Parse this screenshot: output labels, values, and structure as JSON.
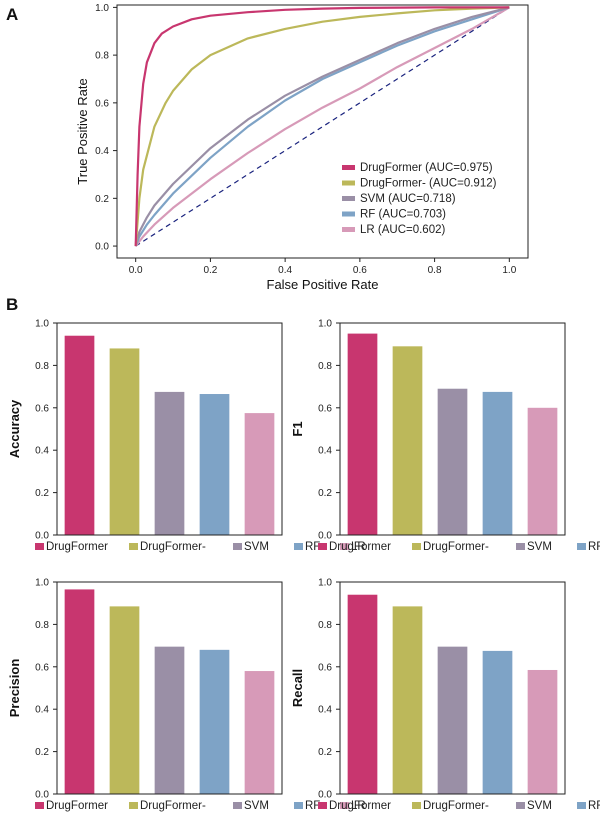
{
  "panel_labels": {
    "a": "A",
    "b": "B"
  },
  "colors": {
    "DrugFormer": "#c8366f",
    "DrugFormer-": "#bcb85a",
    "SVM": "#9a8fa6",
    "RF": "#7ea3c6",
    "LR": "#d79ab8",
    "diagonal": "#1a237e"
  },
  "methods": [
    "DrugFormer",
    "DrugFormer-",
    "SVM",
    "RF",
    "LR"
  ],
  "chart_data": [
    {
      "type": "line",
      "id": "roc",
      "title": "",
      "xlabel": "False Positive Rate",
      "ylabel": "True Positive Rate",
      "xlim": [
        -0.05,
        1.05
      ],
      "ylim": [
        -0.05,
        1.01
      ],
      "xticks": [
        "0.0",
        "0.2",
        "0.4",
        "0.6",
        "0.8",
        "1.0"
      ],
      "yticks": [
        "0.0",
        "0.2",
        "0.4",
        "0.6",
        "0.8",
        "1.0"
      ],
      "legend_position": "bottom-right",
      "diagonal": {
        "x": [
          0,
          1
        ],
        "y": [
          0,
          1
        ],
        "style": "dashed"
      },
      "series": [
        {
          "name": "DrugFormer",
          "legend": "DrugFormer (AUC=0.975)",
          "x": [
            0,
            0.005,
            0.01,
            0.02,
            0.03,
            0.05,
            0.07,
            0.1,
            0.15,
            0.2,
            0.3,
            0.4,
            0.5,
            0.6,
            0.8,
            1.0
          ],
          "y": [
            0,
            0.3,
            0.5,
            0.68,
            0.77,
            0.85,
            0.89,
            0.92,
            0.95,
            0.965,
            0.98,
            0.99,
            0.995,
            0.998,
            1.0,
            1.0
          ]
        },
        {
          "name": "DrugFormer-",
          "legend": "DrugFormer- (AUC=0.912)",
          "x": [
            0,
            0.01,
            0.02,
            0.05,
            0.08,
            0.1,
            0.15,
            0.2,
            0.3,
            0.4,
            0.5,
            0.6,
            0.7,
            0.8,
            0.9,
            1.0
          ],
          "y": [
            0,
            0.2,
            0.32,
            0.5,
            0.6,
            0.65,
            0.74,
            0.8,
            0.87,
            0.91,
            0.94,
            0.96,
            0.975,
            0.988,
            0.995,
            1.0
          ]
        },
        {
          "name": "SVM",
          "legend": "SVM (AUC=0.718)",
          "x": [
            0,
            0.01,
            0.03,
            0.05,
            0.1,
            0.2,
            0.3,
            0.4,
            0.5,
            0.6,
            0.7,
            0.8,
            0.9,
            1.0
          ],
          "y": [
            0,
            0.06,
            0.12,
            0.17,
            0.26,
            0.41,
            0.53,
            0.63,
            0.71,
            0.78,
            0.85,
            0.91,
            0.96,
            1.0
          ]
        },
        {
          "name": "RF",
          "legend": "RF (AUC=0.703)",
          "x": [
            0,
            0.01,
            0.03,
            0.05,
            0.1,
            0.2,
            0.3,
            0.4,
            0.5,
            0.6,
            0.7,
            0.8,
            0.9,
            1.0
          ],
          "y": [
            0,
            0.04,
            0.09,
            0.13,
            0.22,
            0.37,
            0.5,
            0.61,
            0.7,
            0.77,
            0.84,
            0.9,
            0.95,
            1.0
          ]
        },
        {
          "name": "LR",
          "legend": "LR (AUC=0.602)",
          "x": [
            0,
            0.02,
            0.05,
            0.1,
            0.2,
            0.3,
            0.4,
            0.5,
            0.6,
            0.7,
            0.8,
            0.9,
            1.0
          ],
          "y": [
            0,
            0.04,
            0.09,
            0.16,
            0.28,
            0.39,
            0.49,
            0.58,
            0.66,
            0.75,
            0.83,
            0.91,
            1.0
          ]
        }
      ]
    },
    {
      "type": "bar",
      "id": "accuracy",
      "ylabel": "Accuracy",
      "categories": [
        "DrugFormer",
        "DrugFormer-",
        "SVM",
        "RF",
        "LR"
      ],
      "values": [
        0.94,
        0.88,
        0.675,
        0.665,
        0.575
      ],
      "ylim": [
        0,
        1.0
      ],
      "yticks": [
        "0.0",
        "0.2",
        "0.4",
        "0.6",
        "0.8",
        "1.0"
      ],
      "legend_position": "bottom"
    },
    {
      "type": "bar",
      "id": "f1",
      "ylabel": "F1",
      "categories": [
        "DrugFormer",
        "DrugFormer-",
        "SVM",
        "RF",
        "LR"
      ],
      "values": [
        0.95,
        0.89,
        0.69,
        0.675,
        0.6
      ],
      "ylim": [
        0,
        1.0
      ],
      "yticks": [
        "0.0",
        "0.2",
        "0.4",
        "0.6",
        "0.8",
        "1.0"
      ],
      "legend_position": "bottom"
    },
    {
      "type": "bar",
      "id": "precision",
      "ylabel": "Precision",
      "categories": [
        "DrugFormer",
        "DrugFormer-",
        "SVM",
        "RF",
        "LR"
      ],
      "values": [
        0.965,
        0.885,
        0.695,
        0.68,
        0.58
      ],
      "ylim": [
        0,
        1.0
      ],
      "yticks": [
        "0.0",
        "0.2",
        "0.4",
        "0.6",
        "0.8",
        "1.0"
      ],
      "legend_position": "bottom"
    },
    {
      "type": "bar",
      "id": "recall",
      "ylabel": "Recall",
      "categories": [
        "DrugFormer",
        "DrugFormer-",
        "SVM",
        "RF",
        "LR"
      ],
      "values": [
        0.94,
        0.885,
        0.695,
        0.675,
        0.585
      ],
      "ylim": [
        0,
        1.0
      ],
      "yticks": [
        "0.0",
        "0.2",
        "0.4",
        "0.6",
        "0.8",
        "1.0"
      ],
      "legend_position": "bottom"
    }
  ]
}
